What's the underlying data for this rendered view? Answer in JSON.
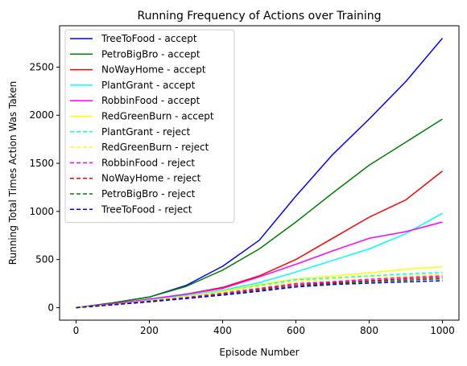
{
  "chart_data": {
    "type": "line",
    "title": "Running Frequency of Actions over Training",
    "xlabel": "Episode Number",
    "ylabel": "Running Total Times Action Was Taken",
    "xlim": [
      -45,
      1045
    ],
    "ylim": [
      -130,
      2930
    ],
    "xticks": [
      0,
      200,
      400,
      600,
      800,
      1000
    ],
    "yticks": [
      0,
      500,
      1000,
      1500,
      2000,
      2500
    ],
    "grid": false,
    "legend_position": "top-left",
    "series": [
      {
        "name": "TreeToFood - accept",
        "color": "#0000ff",
        "dash": "solid",
        "x": [
          0,
          100,
          200,
          300,
          400,
          500,
          600,
          700,
          800,
          900,
          1000
        ],
        "y": [
          0,
          50,
          110,
          230,
          430,
          700,
          1160,
          1590,
          1960,
          2350,
          2800
        ]
      },
      {
        "name": "PetroBigBro - accept",
        "color": "#008000",
        "dash": "solid",
        "x": [
          0,
          100,
          200,
          300,
          400,
          500,
          600,
          700,
          800,
          900,
          1000
        ],
        "y": [
          0,
          50,
          110,
          220,
          390,
          610,
          890,
          1190,
          1480,
          1720,
          1960
        ]
      },
      {
        "name": "NoWayHome - accept",
        "color": "#ff0000",
        "dash": "solid",
        "x": [
          0,
          100,
          200,
          300,
          400,
          500,
          600,
          700,
          800,
          900,
          1000
        ],
        "y": [
          0,
          40,
          85,
          140,
          210,
          330,
          500,
          720,
          940,
          1120,
          1420
        ]
      },
      {
        "name": "PlantGrant - accept",
        "color": "#00ffff",
        "dash": "solid",
        "x": [
          0,
          100,
          200,
          300,
          400,
          500,
          600,
          700,
          800,
          900,
          1000
        ],
        "y": [
          0,
          35,
          80,
          130,
          180,
          260,
          370,
          490,
          610,
          770,
          980
        ]
      },
      {
        "name": "RobbinFood - accept",
        "color": "#ff00ff",
        "dash": "solid",
        "x": [
          0,
          100,
          200,
          300,
          400,
          500,
          600,
          700,
          800,
          900,
          1000
        ],
        "y": [
          0,
          40,
          90,
          140,
          200,
          320,
          450,
          590,
          720,
          790,
          890
        ]
      },
      {
        "name": "RedGreenBurn - accept",
        "color": "#ffff00",
        "dash": "solid",
        "x": [
          0,
          100,
          200,
          300,
          400,
          500,
          600,
          700,
          800,
          900,
          1000
        ],
        "y": [
          0,
          30,
          70,
          120,
          170,
          240,
          300,
          330,
          360,
          400,
          425
        ]
      },
      {
        "name": "PlantGrant - reject",
        "color": "#00ffff",
        "dash": "dashed",
        "x": [
          0,
          100,
          200,
          300,
          400,
          500,
          600,
          700,
          800,
          900,
          1000
        ],
        "y": [
          0,
          35,
          80,
          120,
          160,
          230,
          290,
          310,
          330,
          350,
          365
        ]
      },
      {
        "name": "RedGreenBurn - reject",
        "color": "#ffff00",
        "dash": "dashed",
        "x": [
          0,
          100,
          200,
          300,
          400,
          500,
          600,
          700,
          800,
          900,
          1000
        ],
        "y": [
          0,
          35,
          75,
          115,
          160,
          220,
          270,
          300,
          320,
          335,
          345
        ]
      },
      {
        "name": "RobbinFood - reject",
        "color": "#ff00ff",
        "dash": "dashed",
        "x": [
          0,
          100,
          200,
          300,
          400,
          500,
          600,
          700,
          800,
          900,
          1000
        ],
        "y": [
          0,
          35,
          70,
          105,
          150,
          200,
          250,
          270,
          295,
          315,
          330
        ]
      },
      {
        "name": "NoWayHome - reject",
        "color": "#ff0000",
        "dash": "dashed",
        "x": [
          0,
          100,
          200,
          300,
          400,
          500,
          600,
          700,
          800,
          900,
          1000
        ],
        "y": [
          0,
          30,
          65,
          100,
          140,
          190,
          235,
          260,
          280,
          300,
          315
        ]
      },
      {
        "name": "PetroBigBro - reject",
        "color": "#008000",
        "dash": "dashed",
        "x": [
          0,
          100,
          200,
          300,
          400,
          500,
          600,
          700,
          800,
          900,
          1000
        ],
        "y": [
          0,
          30,
          65,
          95,
          135,
          180,
          220,
          250,
          270,
          285,
          300
        ]
      },
      {
        "name": "TreeToFood - reject",
        "color": "#0000ff",
        "dash": "dashed",
        "x": [
          0,
          100,
          200,
          300,
          400,
          500,
          600,
          700,
          800,
          900,
          1000
        ],
        "y": [
          0,
          30,
          60,
          95,
          130,
          170,
          215,
          240,
          255,
          268,
          280
        ]
      }
    ]
  }
}
